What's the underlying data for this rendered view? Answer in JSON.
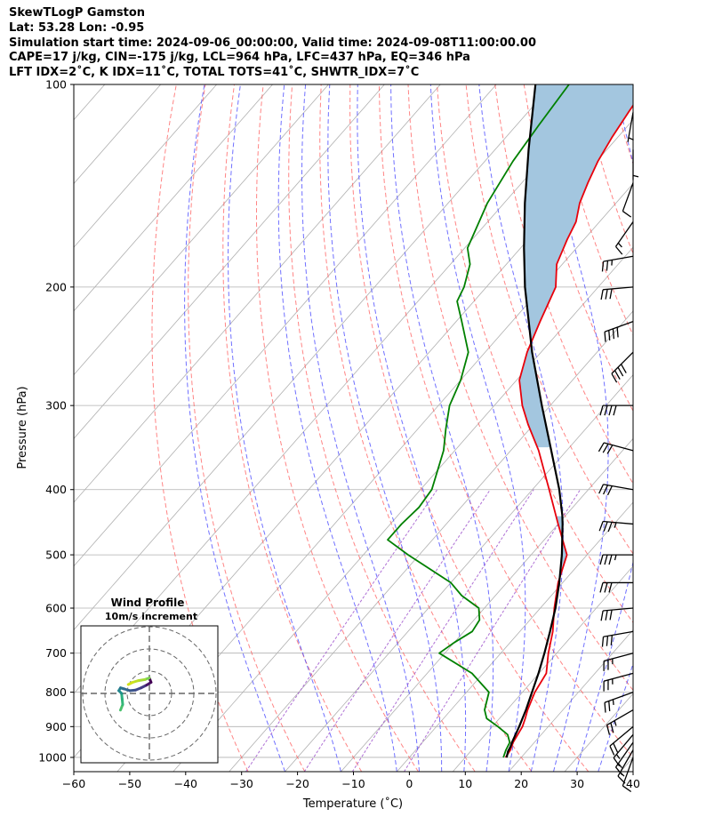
{
  "header": {
    "line1": "SkewTLogP Gamston",
    "line2": "Lat: 53.28   Lon: -0.95",
    "line3": "Simulation start time: 2024-09-06_00:00:00, Valid time: 2024-09-08T11:00:00.00",
    "line4": "CAPE=17 j/kg, CIN=-175 j/kg, LCL=964 hPa, LFC=437 hPa, EQ=346 hPa",
    "line5": "LFT IDX=2˚C, K IDX=11˚C, TOTAL TOTS=41˚C, SHWTR_IDX=7˚C"
  },
  "colors": {
    "temperature": "#e8000b",
    "dewpoint": "#008000",
    "parcel": "#000000",
    "cape_fill": "#a3c6df",
    "isotherm": "#b0b0b0",
    "dry_adiabat": "#ff5c5c",
    "moist_adiabat": "#4c4cff",
    "mixing_ratio": "#9b4dca"
  },
  "chart_data": {
    "type": "line",
    "xlabel": "Temperature (˚C)",
    "ylabel": "Pressure (hPa)",
    "xlim": [
      -60,
      40
    ],
    "ylim": [
      1050,
      100
    ],
    "x_ticks": [
      -60,
      -50,
      -40,
      -30,
      -20,
      -10,
      0,
      10,
      20,
      30,
      40
    ],
    "x_tick_labels": [
      "−60",
      "−50",
      "−40",
      "−30",
      "−20",
      "−10",
      "0",
      "10",
      "20",
      "30",
      "40"
    ],
    "y_ticks": [
      1000,
      900,
      800,
      700,
      600,
      500,
      400,
      300,
      200,
      100
    ],
    "y_tick_labels": [
      "1000",
      "900",
      "800",
      "700",
      "600",
      "500",
      "400",
      "300",
      "200",
      "100"
    ],
    "series": [
      {
        "name": "Temperature",
        "points": [
          [
            1000,
            17.2
          ],
          [
            975,
            16.9
          ],
          [
            950,
            16.2
          ],
          [
            925,
            15.8
          ],
          [
            900,
            15.4
          ],
          [
            875,
            14.6
          ],
          [
            850,
            13.7
          ],
          [
            800,
            12.2
          ],
          [
            750,
            11.3
          ],
          [
            700,
            8.5
          ],
          [
            650,
            5.9
          ],
          [
            600,
            2.5
          ],
          [
            550,
            -0.8
          ],
          [
            500,
            -3.6
          ],
          [
            450,
            -10.0
          ],
          [
            400,
            -17.0
          ],
          [
            350,
            -25.0
          ],
          [
            320,
            -31.0
          ],
          [
            300,
            -35.0
          ],
          [
            275,
            -39.5
          ],
          [
            250,
            -42.5
          ],
          [
            225,
            -45.0
          ],
          [
            200,
            -47.6
          ],
          [
            185,
            -51.0
          ],
          [
            170,
            -53.0
          ],
          [
            160,
            -54.2
          ],
          [
            150,
            -56.5
          ],
          [
            140,
            -58.2
          ],
          [
            130,
            -59.8
          ],
          [
            120,
            -61.0
          ],
          [
            110,
            -62.0
          ],
          [
            100,
            -63.0
          ]
        ]
      },
      {
        "name": "Dewpoint",
        "points": [
          [
            1000,
            16.8
          ],
          [
            975,
            16.1
          ],
          [
            950,
            15.6
          ],
          [
            925,
            14.0
          ],
          [
            900,
            11.0
          ],
          [
            875,
            7.7
          ],
          [
            850,
            6.0
          ],
          [
            800,
            4.0
          ],
          [
            750,
            -2.0
          ],
          [
            700,
            -11.0
          ],
          [
            675,
            -10.0
          ],
          [
            650,
            -8.5
          ],
          [
            625,
            -9.0
          ],
          [
            600,
            -11.0
          ],
          [
            575,
            -16.0
          ],
          [
            550,
            -20.0
          ],
          [
            500,
            -32.0
          ],
          [
            475,
            -38.0
          ],
          [
            450,
            -38.0
          ],
          [
            425,
            -37.5
          ],
          [
            400,
            -38.0
          ],
          [
            350,
            -42.0
          ],
          [
            325,
            -45.0
          ],
          [
            300,
            -48.0
          ],
          [
            275,
            -50.0
          ],
          [
            250,
            -53.0
          ],
          [
            225,
            -59.0
          ],
          [
            210,
            -63.0
          ],
          [
            200,
            -64.0
          ],
          [
            185,
            -66.5
          ],
          [
            175,
            -69.5
          ],
          [
            150,
            -73.0
          ],
          [
            130,
            -75.0
          ],
          [
            115,
            -76.0
          ],
          [
            100,
            -77.0
          ]
        ]
      },
      {
        "name": "Parcel",
        "points": [
          [
            1000,
            17.4
          ],
          [
            980,
            16.7
          ],
          [
            964,
            16.4
          ],
          [
            950,
            16.0
          ],
          [
            900,
            14.8
          ],
          [
            850,
            13.4
          ],
          [
            800,
            11.7
          ],
          [
            750,
            9.9
          ],
          [
            700,
            7.8
          ],
          [
            650,
            5.4
          ],
          [
            600,
            2.7
          ],
          [
            550,
            -0.6
          ],
          [
            500,
            -4.5
          ],
          [
            450,
            -9.2
          ],
          [
            437,
            -10.6
          ],
          [
            400,
            -15.2
          ],
          [
            346,
            -23.4
          ],
          [
            300,
            -31.5
          ],
          [
            250,
            -41.6
          ],
          [
            200,
            -53.1
          ],
          [
            175,
            -59.4
          ],
          [
            150,
            -66.3
          ],
          [
            125,
            -74.0
          ],
          [
            100,
            -83.0
          ]
        ]
      }
    ],
    "cape_region": {
      "from_hPa": 346,
      "to_hPa": 100
    },
    "lower_cape_region": {
      "from_hPa": 550,
      "to_hPa": 437
    },
    "barbs": [
      {
        "p": 1000,
        "speed_kt": 10,
        "dir": 200
      },
      {
        "p": 975,
        "speed_kt": 15,
        "dir": 210
      },
      {
        "p": 950,
        "speed_kt": 15,
        "dir": 215
      },
      {
        "p": 925,
        "speed_kt": 15,
        "dir": 220
      },
      {
        "p": 900,
        "speed_kt": 20,
        "dir": 230
      },
      {
        "p": 850,
        "speed_kt": 25,
        "dir": 240
      },
      {
        "p": 800,
        "speed_kt": 25,
        "dir": 250
      },
      {
        "p": 750,
        "speed_kt": 25,
        "dir": 255
      },
      {
        "p": 700,
        "speed_kt": 25,
        "dir": 255
      },
      {
        "p": 650,
        "speed_kt": 30,
        "dir": 260
      },
      {
        "p": 600,
        "speed_kt": 30,
        "dir": 265
      },
      {
        "p": 550,
        "speed_kt": 30,
        "dir": 270
      },
      {
        "p": 500,
        "speed_kt": 35,
        "dir": 270
      },
      {
        "p": 450,
        "speed_kt": 35,
        "dir": 275
      },
      {
        "p": 400,
        "speed_kt": 30,
        "dir": 280
      },
      {
        "p": 350,
        "speed_kt": 30,
        "dir": 285
      },
      {
        "p": 300,
        "speed_kt": 40,
        "dir": 270
      },
      {
        "p": 250,
        "speed_kt": 40,
        "dir": 225
      },
      {
        "p": 225,
        "speed_kt": 40,
        "dir": 250
      },
      {
        "p": 200,
        "speed_kt": 30,
        "dir": 265
      },
      {
        "p": 180,
        "speed_kt": 25,
        "dir": 260
      },
      {
        "p": 160,
        "speed_kt": 15,
        "dir": 215
      },
      {
        "p": 140,
        "speed_kt": 10,
        "dir": 200
      },
      {
        "p": 125,
        "speed_kt": 5,
        "dir": 180
      },
      {
        "p": 110,
        "speed_kt": 5,
        "dir": 190
      }
    ],
    "hodograph": {
      "title": "Wind Profile",
      "subtitle": "10m/s increment",
      "ring_spacing_ms": 10,
      "rings": 3,
      "points_uv": [
        [
          -5.2,
          -3.0
        ],
        [
          -4.8,
          -2.0
        ],
        [
          -4.9,
          -1.0
        ],
        [
          -5.0,
          0.0
        ],
        [
          -5.5,
          0.5
        ],
        [
          -5.2,
          1.0
        ],
        [
          -4.5,
          0.8
        ],
        [
          -3.5,
          0.5
        ],
        [
          -2.5,
          0.6
        ],
        [
          -1.5,
          1.0
        ],
        [
          -0.5,
          1.5
        ],
        [
          0.3,
          2.0
        ],
        [
          0.0,
          2.8
        ],
        [
          -0.8,
          2.5
        ],
        [
          -2.0,
          2.3
        ],
        [
          -3.0,
          2.0
        ],
        [
          -3.8,
          1.6
        ]
      ]
    }
  }
}
